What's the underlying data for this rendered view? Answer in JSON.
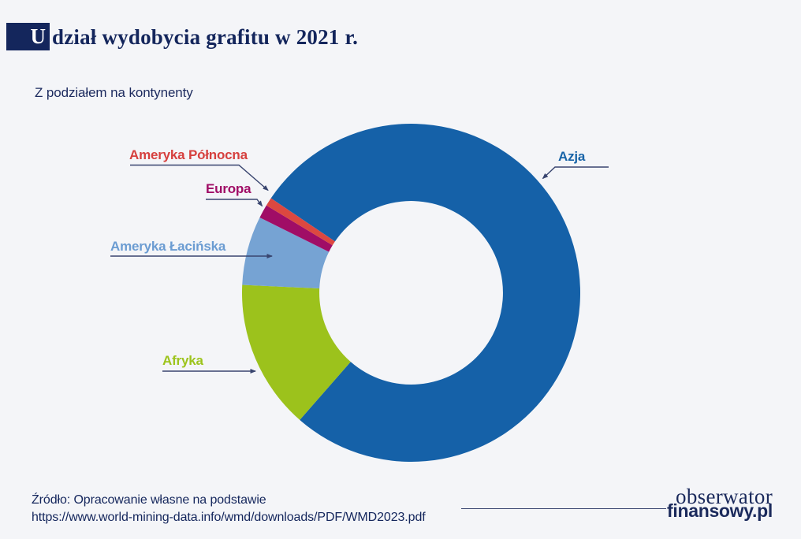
{
  "page": {
    "background_color": "#f4f5f8"
  },
  "header": {
    "title_initial": "U",
    "title_rest": "dział wydobycia grafitu w 2021 r.",
    "accent_box_color": "#14265c",
    "subtitle": "Z podziałem na kontynenty"
  },
  "chart_data": {
    "type": "pie",
    "variant": "donut",
    "title": "Udział wydobycia grafitu w 2021 r.",
    "subtitle": "Z podziałem na kontynenty",
    "value_unit": "%",
    "start_angle_deg": 146,
    "direction": "clockwise",
    "inner_radius_ratio": 0.543,
    "legend_position": "callout-labels",
    "series": [
      {
        "label": "Azja",
        "value": 77.0,
        "color": "#1561a8"
      },
      {
        "label": "Afryka",
        "value": 14.3,
        "color": "#9cc21c"
      },
      {
        "label": "Ameryka Łacińska",
        "value": 6.6,
        "color": "#76a3d3"
      },
      {
        "label": "Europa",
        "value": 1.3,
        "color": "#a00d66"
      },
      {
        "label": "Ameryka Północna",
        "value": 0.8,
        "color": "#dc4840"
      }
    ],
    "label_text_colors": {
      "Azja": "#1864a8",
      "Afryka": "#9dc41d",
      "Ameryka Łacińska": "#6b9cd2",
      "Europa": "#a00d66",
      "Ameryka Północna": "#d6403e"
    },
    "callout_line_color": "#39456f"
  },
  "footer": {
    "source_line1": "Źródło: Opracowanie własne na podstawie",
    "source_line2": "https://www.world-mining-data.info/wmd/downloads/PDF/WMD2023.pdf",
    "brand_line1": "obserwator",
    "brand_line2": "finansowy.pl"
  }
}
